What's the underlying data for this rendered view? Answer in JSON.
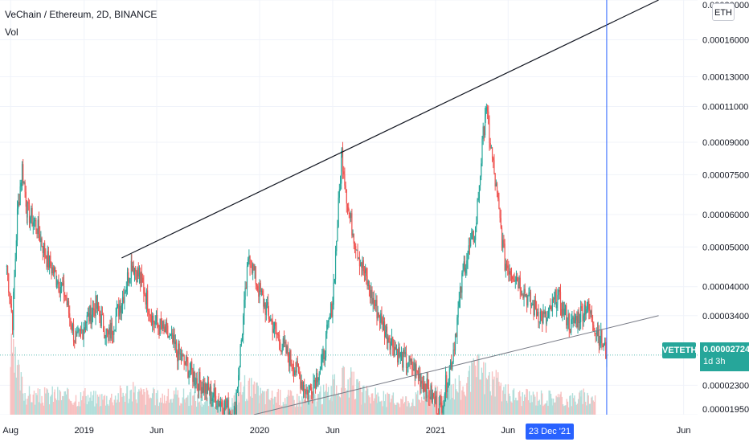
{
  "header": {
    "title": "VeChain / Ethereum, 2D, BINANCE",
    "vol_label": "Vol"
  },
  "currency_button": "ETH",
  "symbol_badge": "VETETH",
  "price_badge": {
    "price": "0.00002724",
    "countdown": "1d 3h"
  },
  "crosshair_date": "23 Dec '21",
  "colors": {
    "up": "#26a69a",
    "down": "#ef5350",
    "up_volume": "#b2dfdb",
    "down_volume": "#f7c1c1",
    "trendline": "#131722",
    "crosshair": "#2962ff",
    "grid": "#f0f3fa"
  },
  "chart_data": {
    "type": "candlestick",
    "y_scale": "log",
    "ylim": [
      1.95e-05,
      0.0002
    ],
    "xlim": [
      "2018-07-10",
      "2022-06-30"
    ],
    "price_axis_labels": [
      "0.00020000",
      "0.00016000",
      "0.00013000",
      "0.00011000",
      "0.00009000",
      "0.00007500",
      "0.00006000",
      "0.00005000",
      "0.00004000",
      "0.00003400",
      "0.00002300",
      "0.00001950"
    ],
    "time_axis_labels": [
      {
        "label": "Aug",
        "date": "2018-08-01"
      },
      {
        "label": "2019",
        "date": "2019-01-01"
      },
      {
        "label": "Jun",
        "date": "2019-06-01"
      },
      {
        "label": "2020",
        "date": "2020-01-01"
      },
      {
        "label": "Jun",
        "date": "2020-06-01"
      },
      {
        "label": "2021",
        "date": "2021-01-01"
      },
      {
        "label": "Jun",
        "date": "2021-06-01"
      },
      {
        "label": "Jun",
        "date": "2022-06-01"
      }
    ],
    "last_price": 2.724e-05,
    "crosshair_date": "2021-12-23",
    "series": [
      {
        "name": "VETETH",
        "closes": [
          [
            "2018-07-24",
            4.5e-05
          ],
          [
            "2018-08-05",
            3.3e-05
          ],
          [
            "2018-08-15",
            6e-05
          ],
          [
            "2018-08-25",
            7.8e-05
          ],
          [
            "2018-09-05",
            6.1e-05
          ],
          [
            "2018-09-25",
            5.6e-05
          ],
          [
            "2018-10-15",
            4.7e-05
          ],
          [
            "2018-11-05",
            4.2e-05
          ],
          [
            "2018-11-20",
            3.9e-05
          ],
          [
            "2018-12-15",
            2.9e-05
          ],
          [
            "2019-01-05",
            3.3e-05
          ],
          [
            "2019-01-25",
            3.6e-05
          ],
          [
            "2019-02-20",
            3e-05
          ],
          [
            "2019-03-20",
            3.7e-05
          ],
          [
            "2019-04-10",
            4.6e-05
          ],
          [
            "2019-05-01",
            4.1e-05
          ],
          [
            "2019-05-25",
            3.3e-05
          ],
          [
            "2019-06-20",
            3.1e-05
          ],
          [
            "2019-07-20",
            2.7e-05
          ],
          [
            "2019-08-20",
            2.4e-05
          ],
          [
            "2019-09-20",
            2.2e-05
          ],
          [
            "2019-10-20",
            2.05e-05
          ],
          [
            "2019-11-10",
            1.95e-05
          ],
          [
            "2019-12-10",
            4.8e-05
          ],
          [
            "2019-12-28",
            4e-05
          ],
          [
            "2020-01-20",
            3.4e-05
          ],
          [
            "2020-02-15",
            2.9e-05
          ],
          [
            "2020-03-10",
            2.6e-05
          ],
          [
            "2020-04-10",
            2.2e-05
          ],
          [
            "2020-05-10",
            2.6e-05
          ],
          [
            "2020-06-01",
            3.7e-05
          ],
          [
            "2020-06-20",
            8.5e-05
          ],
          [
            "2020-07-05",
            6e-05
          ],
          [
            "2020-07-25",
            4.8e-05
          ],
          [
            "2020-08-20",
            3.8e-05
          ],
          [
            "2020-09-20",
            3.1e-05
          ],
          [
            "2020-10-20",
            2.7e-05
          ],
          [
            "2020-11-20",
            2.5e-05
          ],
          [
            "2020-12-20",
            2.2e-05
          ],
          [
            "2021-01-10",
            2e-05
          ],
          [
            "2021-02-05",
            2.7e-05
          ],
          [
            "2021-03-01",
            4.5e-05
          ],
          [
            "2021-03-25",
            5.5e-05
          ],
          [
            "2021-04-15",
            0.00011
          ],
          [
            "2021-05-05",
            7.2e-05
          ],
          [
            "2021-05-25",
            4.6e-05
          ],
          [
            "2021-06-20",
            4.2e-05
          ],
          [
            "2021-07-20",
            3.6e-05
          ],
          [
            "2021-08-20",
            3.3e-05
          ],
          [
            "2021-09-10",
            3.8e-05
          ],
          [
            "2021-10-10",
            3.2e-05
          ],
          [
            "2021-11-10",
            3.6e-05
          ],
          [
            "2021-12-05",
            3.1e-05
          ],
          [
            "2021-12-23",
            2.724e-05
          ]
        ]
      },
      {
        "name": "Vol",
        "values": [
          [
            "2018-08-01",
            1.0
          ],
          [
            "2018-09-01",
            0.35
          ],
          [
            "2018-10-01",
            0.3
          ],
          [
            "2018-11-01",
            0.35
          ],
          [
            "2018-12-01",
            0.3
          ],
          [
            "2019-01-01",
            0.3
          ],
          [
            "2019-02-01",
            0.28
          ],
          [
            "2019-03-01",
            0.3
          ],
          [
            "2019-04-01",
            0.4
          ],
          [
            "2019-05-01",
            0.35
          ],
          [
            "2019-06-01",
            0.3
          ],
          [
            "2019-07-01",
            0.3
          ],
          [
            "2019-08-01",
            0.32
          ],
          [
            "2019-09-01",
            0.25
          ],
          [
            "2019-10-01",
            0.22
          ],
          [
            "2019-11-01",
            0.2
          ],
          [
            "2019-12-01",
            0.5
          ],
          [
            "2020-01-01",
            0.35
          ],
          [
            "2020-02-01",
            0.3
          ],
          [
            "2020-03-01",
            0.3
          ],
          [
            "2020-04-01",
            0.25
          ],
          [
            "2020-05-01",
            0.3
          ],
          [
            "2020-06-01",
            0.45
          ],
          [
            "2020-07-01",
            0.6
          ],
          [
            "2020-08-01",
            0.35
          ],
          [
            "2020-09-01",
            0.3
          ],
          [
            "2020-10-01",
            0.25
          ],
          [
            "2020-11-01",
            0.25
          ],
          [
            "2020-12-01",
            0.3
          ],
          [
            "2021-01-01",
            0.35
          ],
          [
            "2021-02-01",
            0.5
          ],
          [
            "2021-03-01",
            0.45
          ],
          [
            "2021-04-01",
            0.75
          ],
          [
            "2021-05-01",
            0.55
          ],
          [
            "2021-06-01",
            0.35
          ],
          [
            "2021-07-01",
            0.3
          ],
          [
            "2021-08-01",
            0.3
          ],
          [
            "2021-09-01",
            0.3
          ],
          [
            "2021-10-01",
            0.25
          ],
          [
            "2021-11-01",
            0.3
          ],
          [
            "2021-12-01",
            0.3
          ]
        ]
      }
    ],
    "trendlines": [
      {
        "name": "upper-resistance",
        "from": [
          "2019-03-20",
          4.7e-05
        ],
        "to": [
          "2022-04-10",
          0.0002
        ]
      },
      {
        "name": "lower-support",
        "from": [
          "2019-12-20",
          1.95e-05
        ],
        "to": [
          "2022-04-10",
          3.4e-05
        ]
      }
    ],
    "grid": true
  }
}
